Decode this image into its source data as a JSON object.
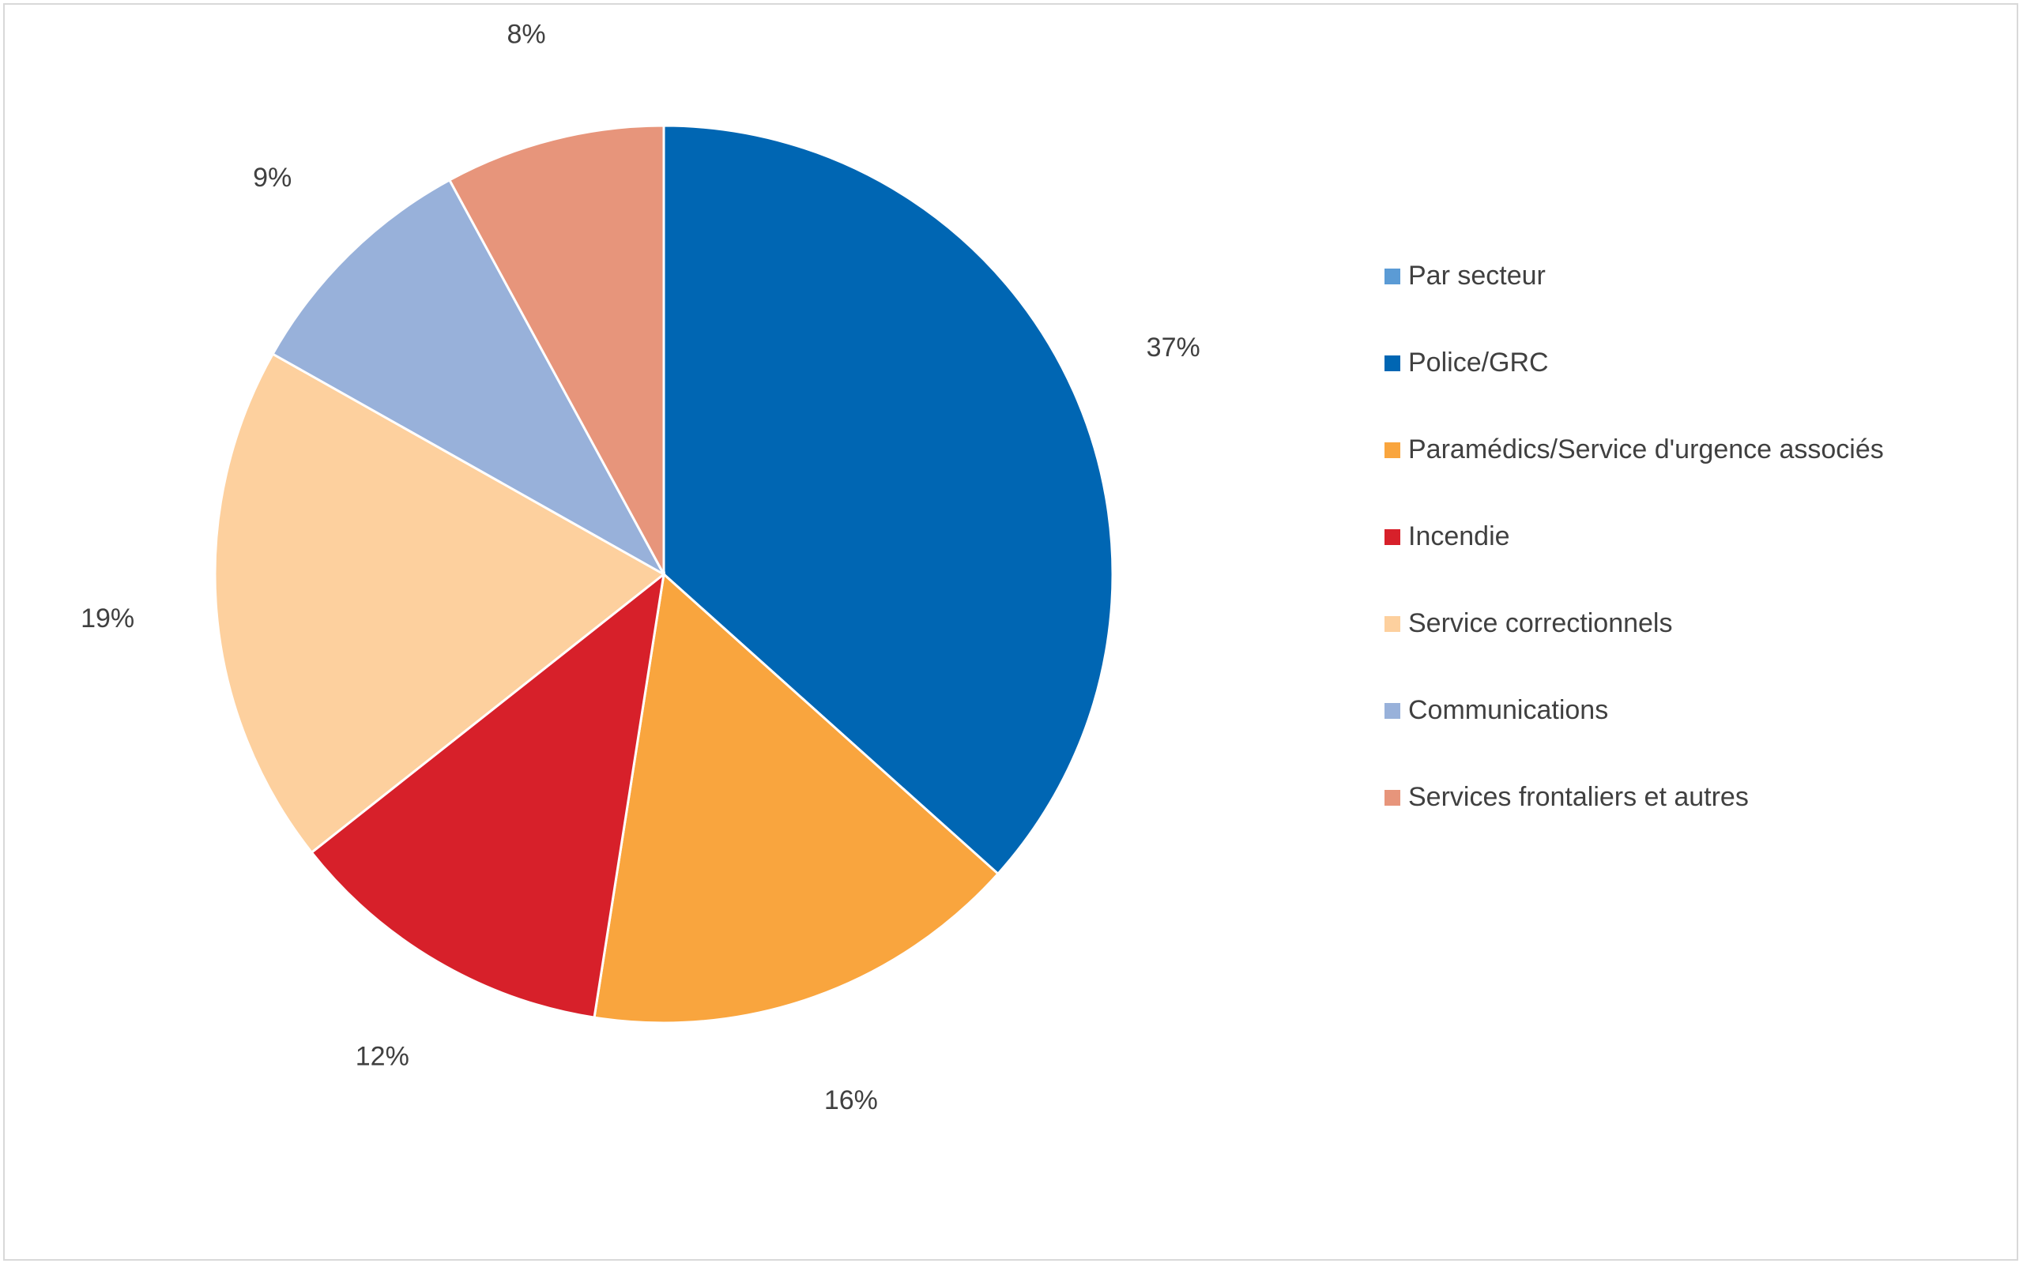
{
  "chart_data": {
    "type": "pie",
    "title": "",
    "legend_position": "right",
    "slices": [
      {
        "name": "Police/GRC",
        "value": 37,
        "label": "37%",
        "color": "#0066b3"
      },
      {
        "name": "Paramédics/Service d'urgence associés",
        "value": 16,
        "label": "16%",
        "color": "#f9a53e"
      },
      {
        "name": "Incendie",
        "value": 12,
        "label": "12%",
        "color": "#d7202a"
      },
      {
        "name": "Service correctionnels",
        "value": 19,
        "label": "19%",
        "color": "#fdd09e"
      },
      {
        "name": "Communications",
        "value": 9,
        "label": "9%",
        "color": "#98b1da"
      },
      {
        "name": "Services frontaliers et autres",
        "value": 8,
        "label": "8%",
        "color": "#e7957b"
      }
    ],
    "legend": [
      {
        "label": "Par secteur",
        "color": "#5b9bd5"
      },
      {
        "label": "Police/GRC",
        "color": "#0066b3"
      },
      {
        "label": "Paramédics/Service d'urgence associés",
        "color": "#f9a53e"
      },
      {
        "label": "Incendie",
        "color": "#d7202a"
      },
      {
        "label": "Service correctionnels",
        "color": "#fdd09e"
      },
      {
        "label": "Communications",
        "color": "#98b1da"
      },
      {
        "label": "Services frontaliers et autres",
        "color": "#e7957b"
      }
    ]
  }
}
